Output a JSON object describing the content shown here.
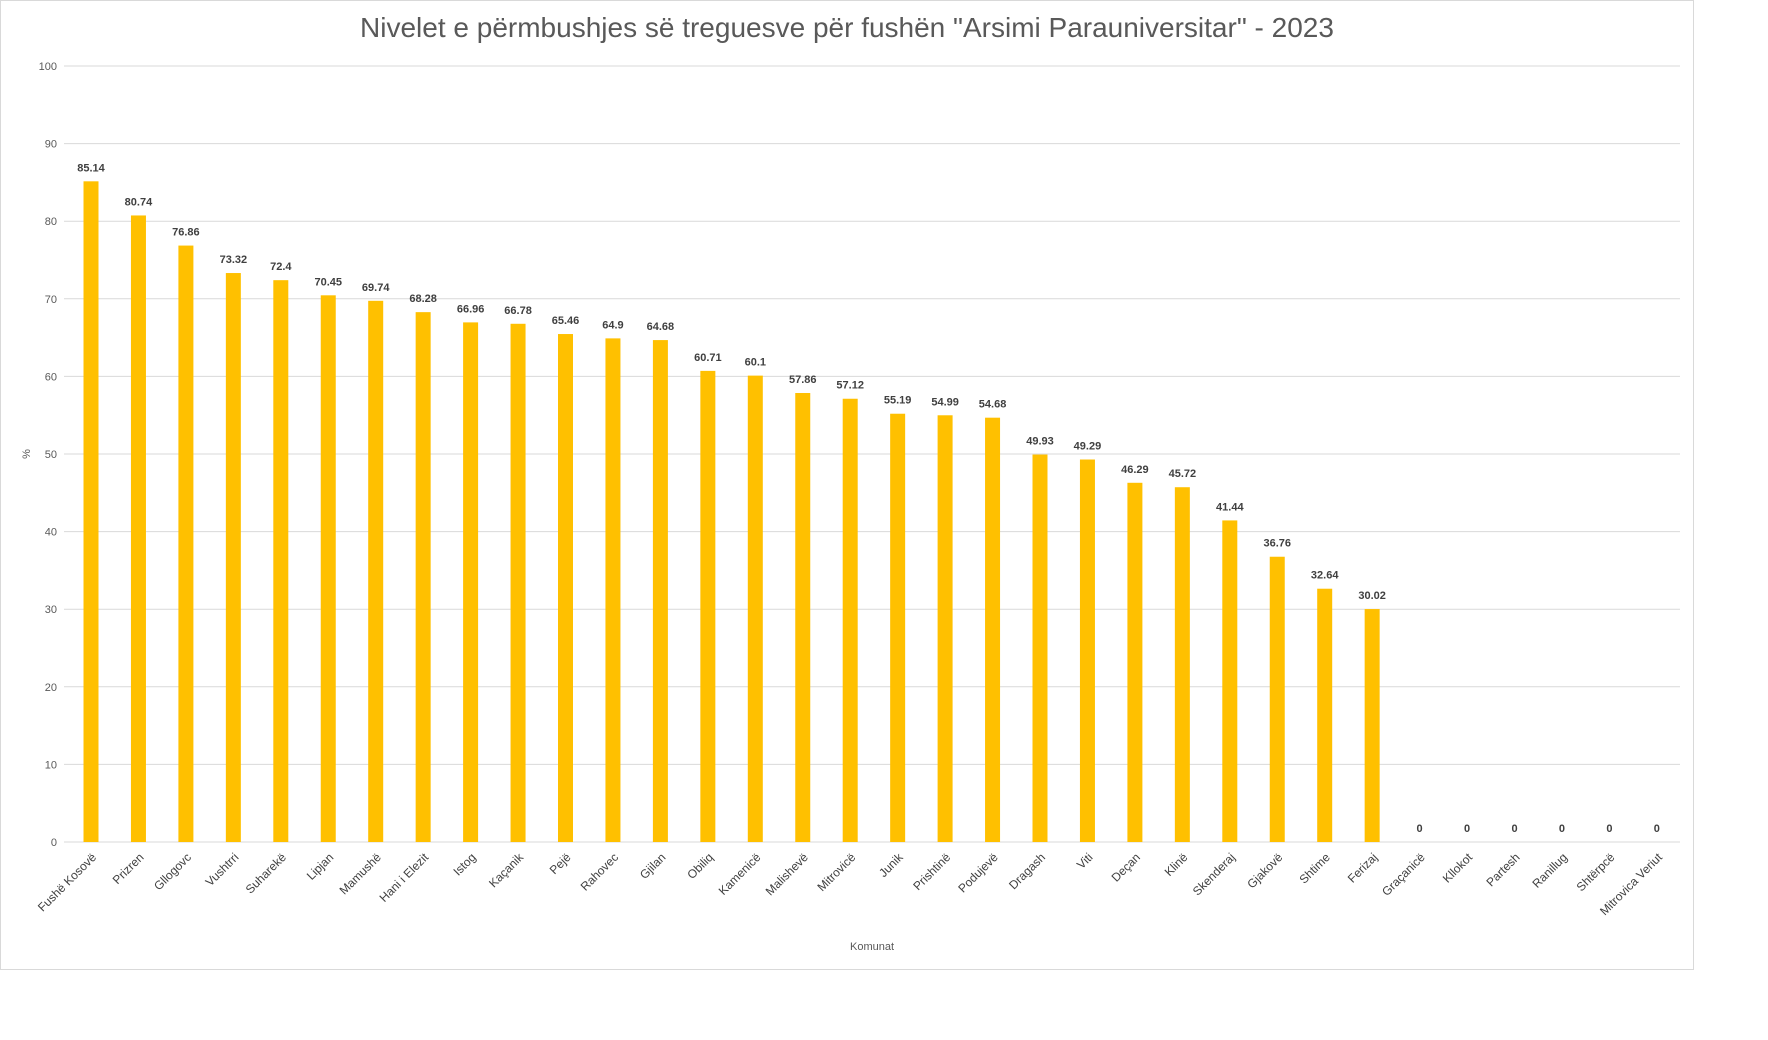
{
  "chart_data": {
    "type": "bar",
    "title": "Nivelet e përmbushjes së treguesve për fushën \"Arsimi Parauniversitar\" - 2023",
    "xlabel": "Komunat",
    "ylabel": "%",
    "ylim": [
      0,
      100
    ],
    "yticks": [
      0,
      10,
      20,
      30,
      40,
      50,
      60,
      70,
      80,
      90,
      100
    ],
    "grid": true,
    "legend": "none",
    "bar_color": "#FFC000",
    "categories": [
      "Fushë Kosovë",
      "Prizren",
      "Gllogovc",
      "Vushtrri",
      "Suharekë",
      "Lipjan",
      "Mamushë",
      "Hani i Elezit",
      "Istog",
      "Kaçanik",
      "Pejë",
      "Rahovec",
      "Gjilan",
      "Obiliq",
      "Kamenicë",
      "Malishevë",
      "Mitrovicë",
      "Junik",
      "Prishtinë",
      "Podujevë",
      "Dragash",
      "Viti",
      "Deçan",
      "Klinë",
      "Skenderaj",
      "Gjakovë",
      "Shtime",
      "Ferizaj",
      "Graçanicë",
      "Kllokot",
      "Partesh",
      "Ranillug",
      "Shtërpcë",
      "Mitrovica Veriut"
    ],
    "values": [
      85.14,
      80.74,
      76.86,
      73.32,
      72.4,
      70.45,
      69.74,
      68.28,
      66.96,
      66.78,
      65.46,
      64.9,
      64.68,
      60.71,
      60.1,
      57.86,
      57.12,
      55.19,
      54.99,
      54.68,
      49.93,
      49.29,
      46.29,
      45.72,
      41.44,
      36.76,
      32.64,
      30.02,
      0,
      0,
      0,
      0,
      0,
      0
    ]
  }
}
